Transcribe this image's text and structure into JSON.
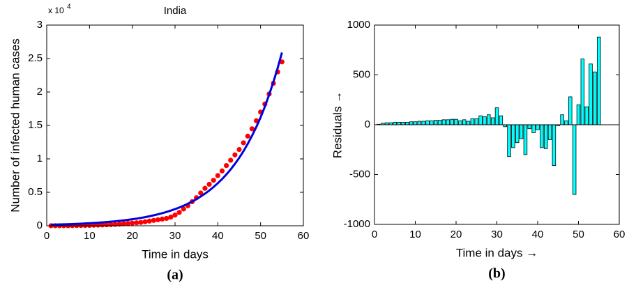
{
  "chart_data": [
    {
      "type": "scatter",
      "title": "India",
      "x_label": "Time in days",
      "y_label": "Number of infected human cases",
      "panel_label": "(a)",
      "y_multiplier": {
        "base": "x 10",
        "exponent": "4"
      },
      "x": [
        1,
        2,
        3,
        4,
        5,
        6,
        7,
        8,
        9,
        10,
        11,
        12,
        13,
        14,
        15,
        16,
        17,
        18,
        19,
        20,
        21,
        22,
        23,
        24,
        25,
        26,
        27,
        28,
        29,
        30,
        31,
        32,
        33,
        34,
        35,
        36,
        37,
        38,
        39,
        40,
        41,
        42,
        43,
        44,
        45,
        46,
        47,
        48,
        49,
        50,
        51,
        52,
        53,
        54,
        55
      ],
      "series": [
        {
          "mark": "dot",
          "color": "#ff0000",
          "values": [
            0,
            0,
            0,
            0,
            0.001,
            0.002,
            0.003,
            0.004,
            0.005,
            0.006,
            0.008,
            0.01,
            0.012,
            0.015,
            0.018,
            0.02,
            0.025,
            0.03,
            0.035,
            0.04,
            0.045,
            0.05,
            0.06,
            0.07,
            0.08,
            0.09,
            0.1,
            0.11,
            0.13,
            0.16,
            0.2,
            0.25,
            0.3,
            0.36,
            0.42,
            0.49,
            0.56,
            0.62,
            0.68,
            0.75,
            0.82,
            0.9,
            0.98,
            1.06,
            1.14,
            1.24,
            1.34,
            1.45,
            1.57,
            1.7,
            1.82,
            1.97,
            2.13,
            2.3,
            2.45
          ]
        },
        {
          "mark": "line",
          "color": "#0000dd",
          "values": [
            0.0165,
            0.0181,
            0.0199,
            0.0218,
            0.024,
            0.0263,
            0.0289,
            0.0318,
            0.0349,
            0.0383,
            0.042,
            0.0462,
            0.0507,
            0.0557,
            0.0611,
            0.0671,
            0.0737,
            0.081,
            0.0889,
            0.0977,
            0.107,
            0.118,
            0.129,
            0.142,
            0.156,
            0.171,
            0.188,
            0.206,
            0.227,
            0.249,
            0.273,
            0.3,
            0.33,
            0.362,
            0.398,
            0.437,
            0.48,
            0.527,
            0.579,
            0.636,
            0.698,
            0.767,
            0.842,
            0.925,
            1.015,
            1.115,
            1.225,
            1.345,
            1.477,
            1.62,
            1.78,
            1.96,
            2.15,
            2.36,
            2.59
          ]
        }
      ],
      "xlim": [
        0,
        60
      ],
      "xticks": [
        0,
        10,
        20,
        30,
        40,
        50,
        60
      ],
      "ylim": [
        0,
        3
      ],
      "yticks": [
        0,
        0.5,
        1,
        1.5,
        2,
        2.5,
        3
      ]
    },
    {
      "type": "bar",
      "x_label": "Time in days →",
      "y_label": "Residuals →",
      "panel_label": "(b)",
      "color": "#00ffff",
      "x": [
        1,
        2,
        3,
        4,
        5,
        6,
        7,
        8,
        9,
        10,
        11,
        12,
        13,
        14,
        15,
        16,
        17,
        18,
        19,
        20,
        21,
        22,
        23,
        24,
        25,
        26,
        27,
        28,
        29,
        30,
        31,
        32,
        33,
        34,
        35,
        36,
        37,
        38,
        39,
        40,
        41,
        42,
        43,
        44,
        45,
        46,
        47,
        48,
        49,
        50,
        51,
        52,
        53,
        54,
        55
      ],
      "values": [
        5,
        15,
        20,
        20,
        25,
        25,
        25,
        25,
        30,
        30,
        35,
        35,
        40,
        40,
        45,
        45,
        50,
        50,
        55,
        55,
        40,
        50,
        35,
        60,
        60,
        90,
        80,
        100,
        70,
        170,
        90,
        -20,
        -320,
        -230,
        -180,
        -140,
        -300,
        -40,
        -80,
        -50,
        -230,
        -240,
        -150,
        -410,
        -10,
        100,
        40,
        280,
        -700,
        200,
        660,
        180,
        610,
        530,
        880
      ],
      "xlim": [
        0,
        60
      ],
      "xticks": [
        0,
        10,
        20,
        30,
        40,
        50,
        60
      ],
      "ylim": [
        -1000,
        1000
      ],
      "yticks": [
        -1000,
        -500,
        0,
        500,
        1000
      ]
    }
  ]
}
